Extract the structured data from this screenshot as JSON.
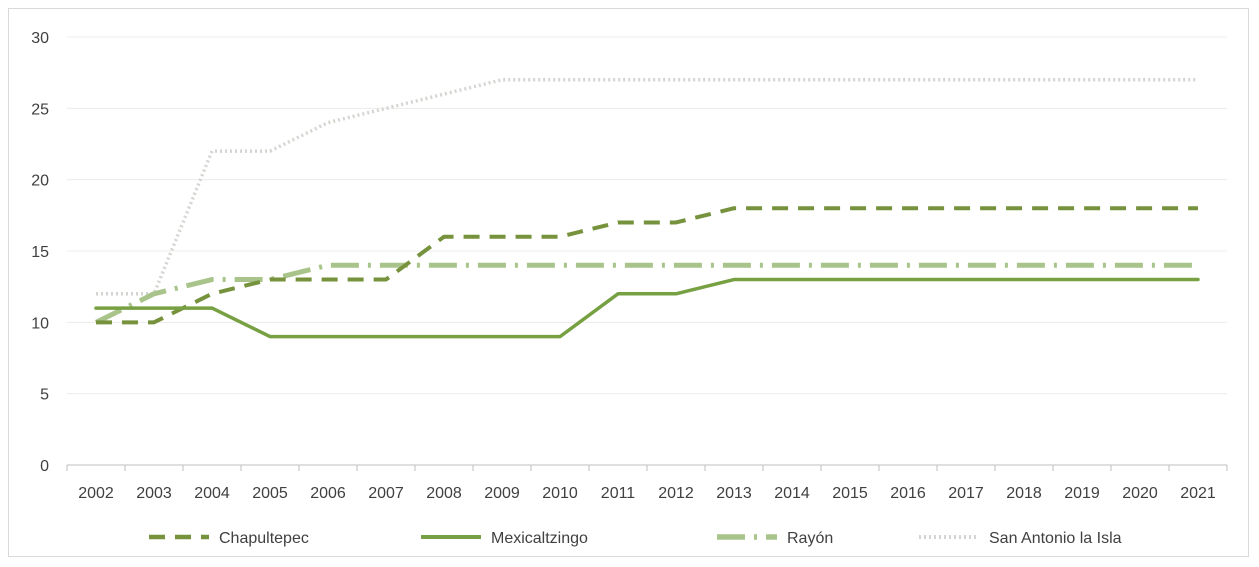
{
  "chart_data": {
    "type": "line",
    "title": "",
    "xlabel": "",
    "ylabel": "",
    "categories": [
      "2002",
      "2003",
      "2004",
      "2005",
      "2006",
      "2007",
      "2008",
      "2009",
      "2010",
      "2011",
      "2012",
      "2013",
      "2014",
      "2015",
      "2016",
      "2017",
      "2018",
      "2019",
      "2020",
      "2021"
    ],
    "ylim": [
      0,
      30
    ],
    "yticks": [
      "0",
      "5",
      "10",
      "15",
      "20",
      "25",
      "30"
    ],
    "grid": true,
    "legend_position": "bottom",
    "series": [
      {
        "name": "Chapultepec",
        "values": [
          10,
          10,
          12,
          13,
          13,
          13,
          16,
          16,
          16,
          17,
          17,
          18,
          18,
          18,
          18,
          18,
          18,
          18,
          18,
          18
        ],
        "color": "#76923c",
        "dash": "dashed"
      },
      {
        "name": "Mexicaltzingo",
        "values": [
          11,
          11,
          11,
          9,
          9,
          9,
          9,
          9,
          9,
          12,
          12,
          13,
          13,
          13,
          13,
          13,
          13,
          13,
          13,
          13
        ],
        "color": "#77a043",
        "dash": "solid"
      },
      {
        "name": "Rayón",
        "values": [
          10,
          12,
          13,
          13,
          14,
          14,
          14,
          14,
          14,
          14,
          14,
          14,
          14,
          14,
          14,
          14,
          14,
          14,
          14,
          14
        ],
        "color": "#a9c48a",
        "dash": "dashdot"
      },
      {
        "name": "San Antonio la Isla",
        "values": [
          12,
          12,
          22,
          22,
          24,
          25,
          26,
          27,
          27,
          27,
          27,
          27,
          27,
          27,
          27,
          27,
          27,
          27,
          27,
          27
        ],
        "color": "#d3d6d0",
        "dash": "dotted"
      }
    ]
  }
}
